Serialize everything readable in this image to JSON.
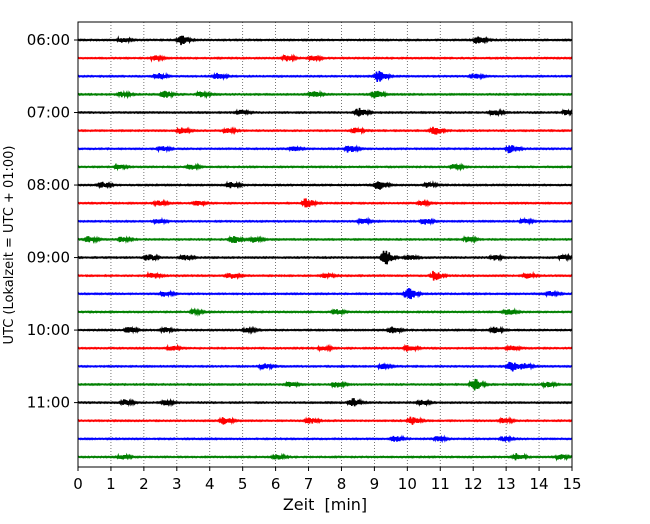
{
  "chart_data": {
    "type": "line",
    "title": "",
    "xlabel": "Zeit  [min]",
    "ylabel": "UTC (Lokalzeit = UTC + 01:00)",
    "xlim": [
      0,
      15
    ],
    "x_ticks": [
      0,
      1,
      2,
      3,
      4,
      5,
      6,
      7,
      8,
      9,
      10,
      11,
      12,
      13,
      14,
      15
    ],
    "x_tick_labels": [
      "0",
      "1",
      "2",
      "3",
      "4",
      "5",
      "6",
      "7",
      "8",
      "9",
      "10",
      "11",
      "12",
      "13",
      "14",
      "15"
    ],
    "y_tick_labels": [
      "06:00",
      "07:00",
      "08:00",
      "09:00",
      "10:00",
      "11:00"
    ],
    "y_tick_rows": [
      0,
      4,
      8,
      12,
      16,
      20
    ],
    "trace_interval_min": 15,
    "grid": "vertical dotted",
    "legend": "none",
    "colors": [
      "#000000",
      "#ff0000",
      "#0000ff",
      "#008000"
    ],
    "traces": [
      {
        "start": "06:00",
        "color": "#000000",
        "events": [
          [
            1.3,
            0.35
          ],
          [
            3.1,
            0.6
          ],
          [
            12.1,
            0.5
          ]
        ]
      },
      {
        "start": "06:15",
        "color": "#ff0000",
        "events": [
          [
            2.3,
            0.3
          ],
          [
            6.3,
            0.35
          ],
          [
            7.1,
            0.3
          ]
        ]
      },
      {
        "start": "06:30",
        "color": "#0000ff",
        "events": [
          [
            2.4,
            0.4
          ],
          [
            4.2,
            0.35
          ],
          [
            9.1,
            0.75
          ],
          [
            12.0,
            0.3
          ]
        ]
      },
      {
        "start": "06:45",
        "color": "#008000",
        "events": [
          [
            1.3,
            0.3
          ],
          [
            2.6,
            0.45
          ],
          [
            3.7,
            0.3
          ],
          [
            7.1,
            0.35
          ],
          [
            9.0,
            0.5
          ]
        ]
      },
      {
        "start": "07:00",
        "color": "#000000",
        "events": [
          [
            4.9,
            0.3
          ],
          [
            8.5,
            0.55
          ],
          [
            12.6,
            0.35
          ],
          [
            14.8,
            0.3
          ]
        ]
      },
      {
        "start": "07:15",
        "color": "#ff0000",
        "events": [
          [
            3.1,
            0.35
          ],
          [
            4.5,
            0.3
          ],
          [
            8.4,
            0.3
          ],
          [
            10.8,
            0.6
          ]
        ]
      },
      {
        "start": "07:30",
        "color": "#0000ff",
        "events": [
          [
            2.5,
            0.3
          ],
          [
            6.5,
            0.25
          ],
          [
            8.2,
            0.45
          ],
          [
            13.1,
            0.55
          ]
        ]
      },
      {
        "start": "07:45",
        "color": "#008000",
        "events": [
          [
            1.2,
            0.25
          ],
          [
            3.4,
            0.3
          ],
          [
            11.4,
            0.3
          ]
        ]
      },
      {
        "start": "08:00",
        "color": "#000000",
        "events": [
          [
            0.7,
            0.35
          ],
          [
            4.6,
            0.35
          ],
          [
            9.1,
            0.65
          ],
          [
            10.6,
            0.3
          ]
        ]
      },
      {
        "start": "08:15",
        "color": "#ff0000",
        "events": [
          [
            2.4,
            0.3
          ],
          [
            3.6,
            0.3
          ],
          [
            6.9,
            0.6
          ],
          [
            10.4,
            0.3
          ]
        ]
      },
      {
        "start": "08:30",
        "color": "#0000ff",
        "events": [
          [
            2.4,
            0.3
          ],
          [
            8.6,
            0.3
          ],
          [
            10.5,
            0.35
          ],
          [
            13.5,
            0.25
          ]
        ]
      },
      {
        "start": "08:45",
        "color": "#008000",
        "events": [
          [
            0.3,
            0.35
          ],
          [
            1.3,
            0.3
          ],
          [
            4.7,
            0.45
          ],
          [
            5.3,
            0.35
          ],
          [
            11.8,
            0.3
          ]
        ]
      },
      {
        "start": "09:00",
        "color": "#000000",
        "events": [
          [
            2.1,
            0.45
          ],
          [
            3.2,
            0.3
          ],
          [
            9.3,
            0.9
          ],
          [
            10.0,
            0.35
          ],
          [
            12.6,
            0.3
          ],
          [
            14.7,
            0.3
          ]
        ]
      },
      {
        "start": "09:15",
        "color": "#ff0000",
        "events": [
          [
            2.2,
            0.4
          ],
          [
            4.6,
            0.35
          ],
          [
            7.5,
            0.3
          ],
          [
            10.8,
            0.6
          ],
          [
            13.6,
            0.3
          ]
        ]
      },
      {
        "start": "09:30",
        "color": "#0000ff",
        "events": [
          [
            2.6,
            0.3
          ],
          [
            10.0,
            0.75
          ],
          [
            14.3,
            0.3
          ]
        ]
      },
      {
        "start": "09:45",
        "color": "#008000",
        "events": [
          [
            3.5,
            0.25
          ],
          [
            7.8,
            0.3
          ],
          [
            13.0,
            0.45
          ]
        ]
      },
      {
        "start": "10:00",
        "color": "#000000",
        "events": [
          [
            1.5,
            0.35
          ],
          [
            2.6,
            0.3
          ],
          [
            5.1,
            0.3
          ],
          [
            9.5,
            0.45
          ],
          [
            12.6,
            0.35
          ]
        ]
      },
      {
        "start": "10:15",
        "color": "#ff0000",
        "events": [
          [
            2.8,
            0.3
          ],
          [
            7.4,
            0.3
          ],
          [
            10.0,
            0.4
          ],
          [
            13.1,
            0.3
          ]
        ]
      },
      {
        "start": "10:30",
        "color": "#0000ff",
        "events": [
          [
            5.6,
            0.35
          ],
          [
            9.2,
            0.3
          ],
          [
            13.1,
            0.7
          ],
          [
            13.5,
            0.45
          ]
        ]
      },
      {
        "start": "10:45",
        "color": "#008000",
        "events": [
          [
            6.4,
            0.3
          ],
          [
            7.8,
            0.35
          ],
          [
            12.0,
            0.75
          ],
          [
            14.2,
            0.3
          ]
        ]
      },
      {
        "start": "11:00",
        "color": "#000000",
        "events": [
          [
            1.4,
            0.35
          ],
          [
            2.6,
            0.3
          ],
          [
            8.3,
            0.55
          ],
          [
            10.4,
            0.3
          ]
        ]
      },
      {
        "start": "11:15",
        "color": "#ff0000",
        "events": [
          [
            4.4,
            0.45
          ],
          [
            7.0,
            0.35
          ],
          [
            10.1,
            0.5
          ],
          [
            12.9,
            0.3
          ]
        ]
      },
      {
        "start": "11:30",
        "color": "#0000ff",
        "events": [
          [
            9.6,
            0.35
          ],
          [
            10.9,
            0.3
          ],
          [
            12.9,
            0.25
          ]
        ]
      },
      {
        "start": "11:45",
        "color": "#008000",
        "events": [
          [
            1.3,
            0.3
          ],
          [
            6.0,
            0.3
          ],
          [
            13.3,
            0.45
          ],
          [
            14.6,
            0.3
          ]
        ]
      }
    ]
  }
}
